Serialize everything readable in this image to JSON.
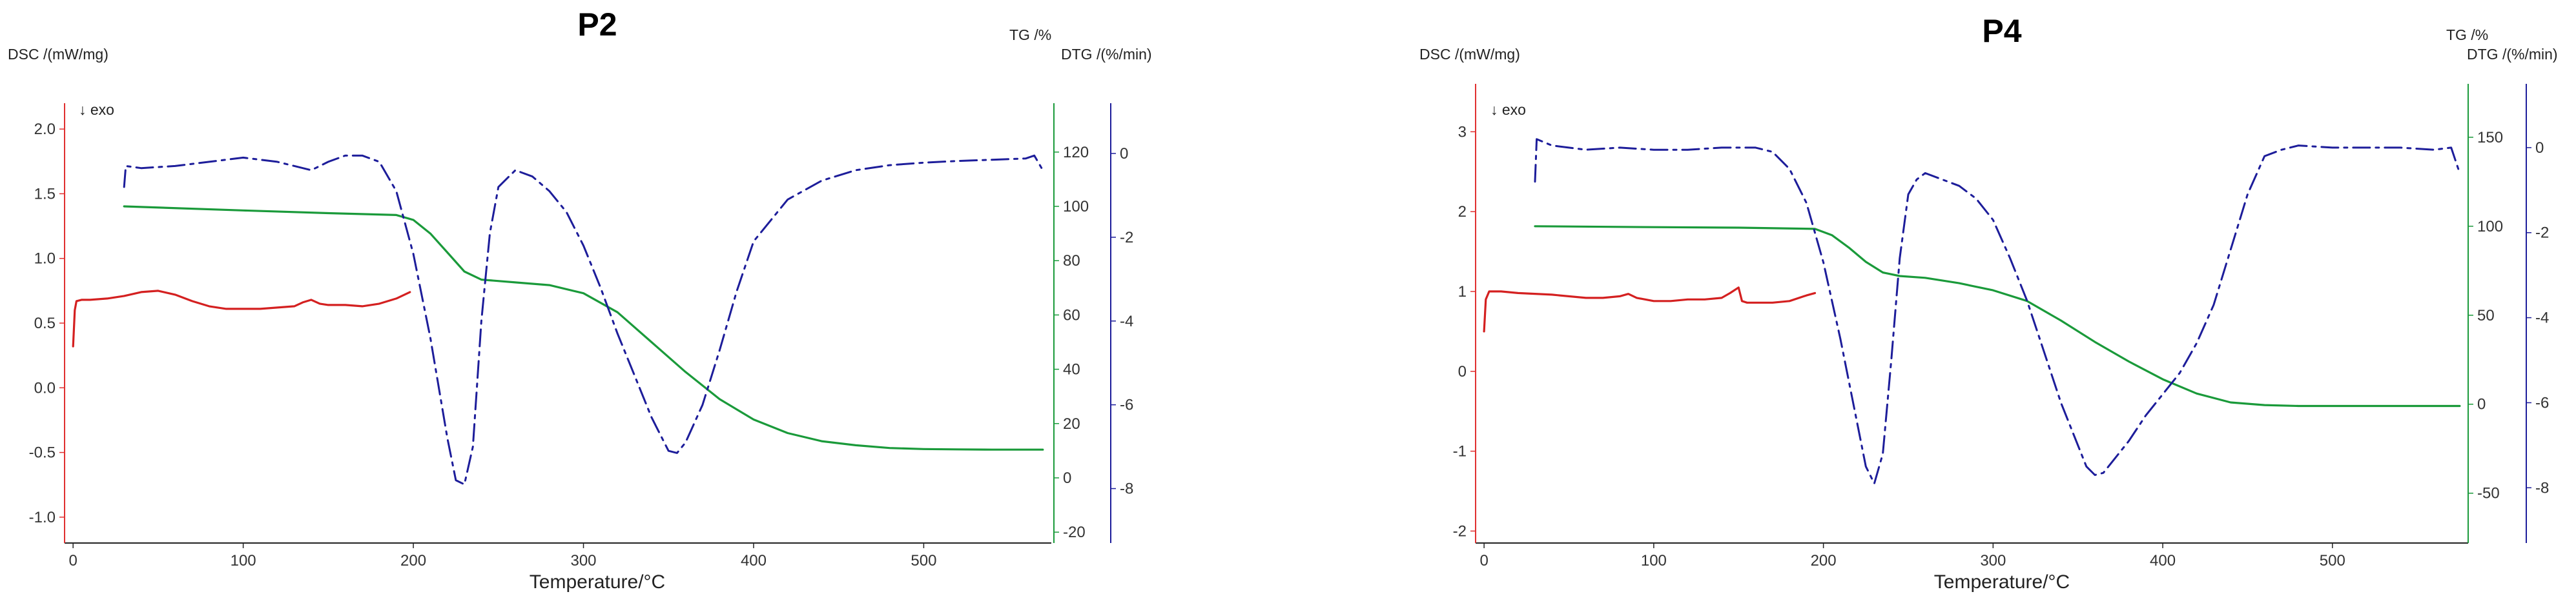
{
  "chart_data": [
    {
      "type": "line",
      "title": "P2",
      "xlabel": "Temperature/°C",
      "xlim": [
        -5,
        575
      ],
      "xticks": [
        0,
        100,
        200,
        300,
        400,
        500
      ],
      "exo_label": "↓ exo",
      "axes": {
        "dsc": {
          "label": "DSC /(mW/mg)",
          "color": "#e03030",
          "lim": [
            -1.2,
            2.2
          ],
          "ticks": [
            -1.0,
            -0.5,
            0.0,
            0.5,
            1.0,
            1.5,
            2.0
          ]
        },
        "tg": {
          "label": "TG /%",
          "color": "#1a9a3a",
          "lim": [
            -24,
            138
          ],
          "ticks": [
            -20,
            0,
            20,
            40,
            60,
            80,
            100,
            120
          ]
        },
        "dtg": {
          "label": "DTG /(%/min)",
          "color": "#1d1d9a",
          "lim": [
            -9.3,
            1.2
          ],
          "ticks": [
            -8,
            -6,
            -4,
            -2,
            0
          ]
        }
      },
      "series": [
        {
          "name": "DSC",
          "axis": "dsc",
          "style": "solid",
          "color": "#d42020",
          "x": [
            0,
            1,
            2,
            5,
            10,
            20,
            30,
            40,
            50,
            60,
            70,
            80,
            90,
            100,
            110,
            120,
            130,
            135,
            140,
            145,
            150,
            160,
            170,
            180,
            190,
            198
          ],
          "y": [
            0.32,
            0.6,
            0.67,
            0.68,
            0.68,
            0.69,
            0.71,
            0.74,
            0.75,
            0.72,
            0.67,
            0.63,
            0.61,
            0.61,
            0.61,
            0.62,
            0.63,
            0.66,
            0.68,
            0.65,
            0.64,
            0.64,
            0.63,
            0.65,
            0.69,
            0.74
          ]
        },
        {
          "name": "TG",
          "axis": "tg",
          "style": "solid",
          "color": "#1a9a3a",
          "x": [
            30,
            100,
            150,
            190,
            200,
            210,
            220,
            230,
            240,
            260,
            280,
            300,
            320,
            340,
            360,
            380,
            400,
            420,
            440,
            460,
            480,
            500,
            520,
            540,
            560,
            570
          ],
          "y": [
            100,
            98.5,
            97.5,
            96.8,
            95,
            90,
            83,
            76,
            73,
            72,
            71,
            68,
            61,
            50,
            39,
            29,
            21.5,
            16.5,
            13.5,
            12,
            11,
            10.6,
            10.5,
            10.4,
            10.4,
            10.4
          ]
        },
        {
          "name": "DTG",
          "axis": "dtg",
          "style": "dashdot",
          "color": "#1d1d9a",
          "x": [
            30,
            31,
            40,
            60,
            80,
            100,
            120,
            140,
            150,
            160,
            170,
            180,
            190,
            200,
            210,
            220,
            225,
            230,
            235,
            240,
            245,
            250,
            260,
            270,
            280,
            290,
            300,
            310,
            320,
            330,
            340,
            350,
            355,
            360,
            370,
            380,
            390,
            400,
            420,
            440,
            460,
            480,
            500,
            520,
            540,
            560,
            565,
            570
          ],
          "y": [
            -0.8,
            -0.3,
            -0.35,
            -0.3,
            -0.2,
            -0.1,
            -0.2,
            -0.4,
            -0.2,
            -0.05,
            -0.05,
            -0.2,
            -0.9,
            -2.4,
            -4.4,
            -6.8,
            -7.8,
            -7.9,
            -7.0,
            -4.0,
            -1.9,
            -0.8,
            -0.4,
            -0.55,
            -0.9,
            -1.4,
            -2.2,
            -3.2,
            -4.3,
            -5.3,
            -6.3,
            -7.1,
            -7.15,
            -6.9,
            -6.0,
            -4.7,
            -3.3,
            -2.1,
            -1.1,
            -0.65,
            -0.4,
            -0.28,
            -0.22,
            -0.18,
            -0.15,
            -0.12,
            -0.05,
            -0.4
          ]
        }
      ]
    },
    {
      "type": "line",
      "title": "P4",
      "xlabel": "Temperature/°C",
      "xlim": [
        -5,
        580
      ],
      "xticks": [
        0,
        100,
        200,
        300,
        400,
        500
      ],
      "exo_label": "↓ exo",
      "axes": {
        "dsc": {
          "label": "DSC /(mW/mg)",
          "color": "#e03030",
          "lim": [
            -2.15,
            3.6
          ],
          "ticks": [
            -2,
            -1,
            0,
            1,
            2,
            3
          ]
        },
        "tg": {
          "label": "TG /%",
          "color": "#1a9a3a",
          "lim": [
            -78,
            180
          ],
          "ticks": [
            -50,
            0,
            50,
            100,
            150
          ]
        },
        "dtg": {
          "label": "DTG /(%/min)",
          "color": "#1d1d9a",
          "lim": [
            -9.3,
            1.5
          ],
          "ticks": [
            -8,
            -6,
            -4,
            -2,
            0
          ]
        }
      },
      "series": [
        {
          "name": "DSC",
          "axis": "dsc",
          "style": "solid",
          "color": "#d42020",
          "x": [
            0,
            1,
            3,
            10,
            20,
            40,
            60,
            70,
            80,
            85,
            90,
            100,
            110,
            120,
            130,
            140,
            145,
            150,
            152,
            155,
            160,
            170,
            180,
            190,
            195
          ],
          "y": [
            0.5,
            0.9,
            1.0,
            1.0,
            0.98,
            0.96,
            0.92,
            0.92,
            0.94,
            0.97,
            0.92,
            0.88,
            0.88,
            0.9,
            0.9,
            0.92,
            0.98,
            1.05,
            0.88,
            0.86,
            0.86,
            0.86,
            0.88,
            0.95,
            0.98
          ]
        },
        {
          "name": "TG",
          "axis": "tg",
          "style": "solid",
          "color": "#1a9a3a",
          "x": [
            30,
            100,
            150,
            195,
            205,
            215,
            225,
            235,
            245,
            260,
            280,
            300,
            320,
            340,
            360,
            380,
            400,
            420,
            440,
            460,
            480,
            500,
            520,
            540,
            560,
            575
          ],
          "y": [
            100,
            99.5,
            99.2,
            98.5,
            95,
            88,
            80,
            74,
            72,
            71,
            68,
            64,
            58,
            47,
            35,
            24,
            14,
            6,
            1,
            -0.5,
            -1,
            -1,
            -1,
            -1,
            -1,
            -1
          ]
        },
        {
          "name": "DTG",
          "axis": "dtg",
          "style": "dashdot",
          "color": "#1d1d9a",
          "x": [
            30,
            31,
            40,
            60,
            80,
            100,
            120,
            140,
            160,
            170,
            180,
            190,
            200,
            210,
            220,
            225,
            230,
            235,
            240,
            245,
            250,
            255,
            260,
            270,
            280,
            290,
            300,
            310,
            320,
            330,
            340,
            350,
            355,
            360,
            365,
            370,
            380,
            390,
            400,
            410,
            420,
            430,
            440,
            450,
            460,
            470,
            480,
            500,
            520,
            540,
            560,
            570,
            575
          ],
          "y": [
            -0.8,
            0.2,
            0.05,
            -0.05,
            0.0,
            -0.05,
            -0.05,
            0.0,
            0.0,
            -0.1,
            -0.5,
            -1.3,
            -2.7,
            -4.5,
            -6.5,
            -7.5,
            -7.9,
            -7.2,
            -5.0,
            -2.6,
            -1.1,
            -0.75,
            -0.6,
            -0.75,
            -0.9,
            -1.2,
            -1.7,
            -2.6,
            -3.6,
            -4.8,
            -6.0,
            -7.0,
            -7.5,
            -7.7,
            -7.65,
            -7.4,
            -6.9,
            -6.3,
            -5.8,
            -5.3,
            -4.6,
            -3.7,
            -2.4,
            -1.1,
            -0.2,
            -0.05,
            0.05,
            0.0,
            0.0,
            0.0,
            -0.05,
            0.0,
            -0.6
          ]
        }
      ]
    }
  ]
}
